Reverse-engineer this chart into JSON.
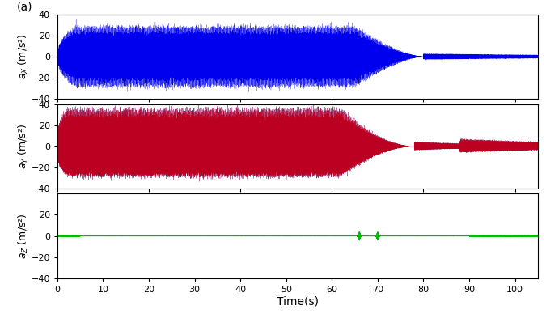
{
  "title_label": "(a)",
  "xlabel": "Time(s)",
  "ylabel_x": "$a_X$ (m/s²)",
  "ylabel_y": "$a_Y$ (m/s²)",
  "ylabel_z": "$a_Z$ (m/s²)",
  "ylim": [
    -40,
    40
  ],
  "xlim": [
    0,
    105
  ],
  "xticks": [
    0,
    10,
    20,
    30,
    40,
    50,
    60,
    70,
    80,
    90,
    100
  ],
  "yticks_top": [
    -40,
    -20,
    0,
    20,
    40
  ],
  "yticks_mid": [
    -40,
    -20,
    0,
    20,
    40
  ],
  "yticks_bot": [
    -40,
    -20,
    0,
    20
  ],
  "color_x": "#0000ee",
  "color_y_red": "#dd0000",
  "color_y_blue": "#0000dd",
  "color_z": "#00bb00",
  "figsize": [
    6.75,
    3.93
  ],
  "dpi": 100
}
